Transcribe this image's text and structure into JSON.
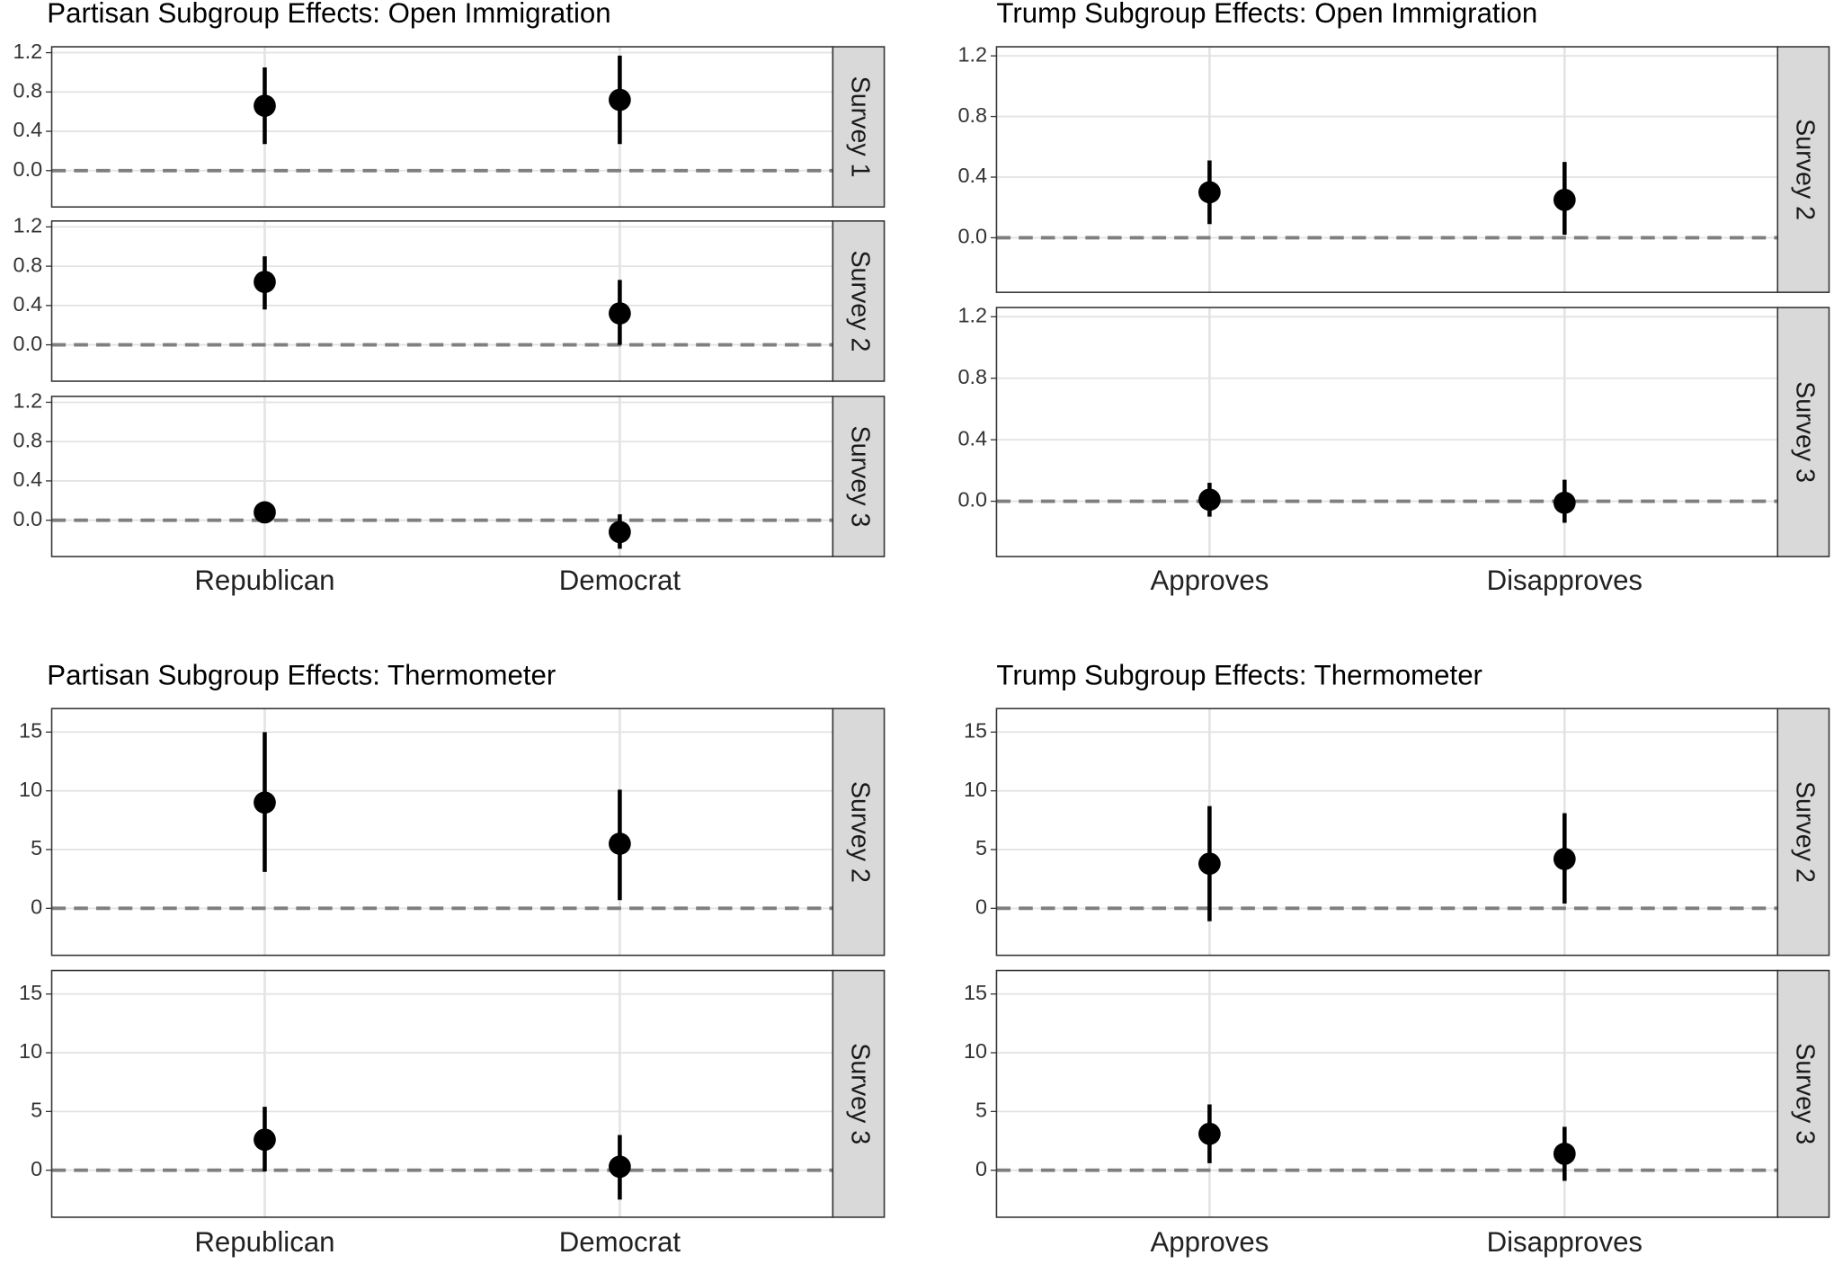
{
  "chart_data": [
    {
      "type": "pointrange",
      "title": "Partisan Subgroup Effects: Open Immigration",
      "categories": [
        "Republican",
        "Democrat"
      ],
      "ylim": [
        -0.37,
        1.26
      ],
      "yticks": [
        {
          "value": 0,
          "label": "0.0"
        },
        0.4,
        0.8,
        1.2
      ],
      "hline": 0,
      "panels": [
        {
          "strip": "Survey 1",
          "values": [
            0.66,
            0.72
          ],
          "lower": [
            0.27,
            0.27
          ],
          "upper": [
            1.05,
            1.17
          ]
        },
        {
          "strip": "Survey 2",
          "values": [
            0.64,
            0.32
          ],
          "lower": [
            0.36,
            0.0
          ],
          "upper": [
            0.9,
            0.66
          ]
        },
        {
          "strip": "Survey 3",
          "values": [
            0.08,
            -0.12
          ],
          "lower": [
            -0.03,
            -0.29
          ],
          "upper": [
            0.18,
            0.06
          ]
        }
      ]
    },
    {
      "type": "pointrange",
      "title": "Trump Subgroup Effects: Open Immigration",
      "categories": [
        "Approves",
        "Disapproves"
      ],
      "ylim": [
        -0.36,
        1.26
      ],
      "yticks": [
        {
          "value": 0,
          "label": "0.0"
        },
        0.4,
        0.8,
        1.2
      ],
      "hline": 0,
      "panels": [
        {
          "strip": "Survey 2",
          "values": [
            0.3,
            0.25
          ],
          "lower": [
            0.09,
            0.02
          ],
          "upper": [
            0.51,
            0.5
          ]
        },
        {
          "strip": "Survey 3",
          "values": [
            0.01,
            -0.01
          ],
          "lower": [
            -0.1,
            -0.14
          ],
          "upper": [
            0.12,
            0.14
          ]
        }
      ]
    },
    {
      "type": "pointrange",
      "title": "Partisan Subgroup Effects: Thermometer",
      "categories": [
        "Republican",
        "Democrat"
      ],
      "ylim": [
        -4,
        17
      ],
      "yticks": [
        0,
        5,
        10,
        15
      ],
      "hline": 0,
      "panels": [
        {
          "strip": "Survey 2",
          "values": [
            9.0,
            5.5
          ],
          "lower": [
            3.1,
            0.7
          ],
          "upper": [
            15.0,
            10.1
          ]
        },
        {
          "strip": "Survey 3",
          "values": [
            2.6,
            0.3
          ],
          "lower": [
            -0.1,
            -2.5
          ],
          "upper": [
            5.4,
            3.0
          ]
        }
      ]
    },
    {
      "type": "pointrange",
      "title": "Trump Subgroup Effects: Thermometer",
      "categories": [
        "Approves",
        "Disapproves"
      ],
      "ylim": [
        -4,
        17
      ],
      "yticks": [
        0,
        5,
        10,
        15
      ],
      "hline": 0,
      "panels": [
        {
          "strip": "Survey 2",
          "values": [
            3.8,
            4.2
          ],
          "lower": [
            -1.1,
            0.4
          ],
          "upper": [
            8.7,
            8.1
          ]
        },
        {
          "strip": "Survey 3",
          "values": [
            3.1,
            1.4
          ],
          "lower": [
            0.6,
            -0.9
          ],
          "upper": [
            5.6,
            3.7
          ]
        }
      ]
    }
  ]
}
